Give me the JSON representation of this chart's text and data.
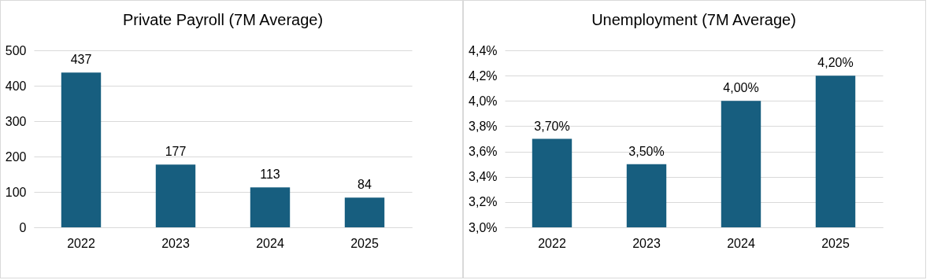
{
  "chart_data": [
    {
      "type": "bar",
      "title": "Private Payroll (7M Average)",
      "categories": [
        "2022",
        "2023",
        "2024",
        "2025"
      ],
      "values": [
        437,
        177,
        113,
        84
      ],
      "color": "#175e7f",
      "ylim": [
        0,
        500
      ],
      "yticks": [
        0,
        100,
        200,
        300,
        400,
        500
      ],
      "grid": "y",
      "data_labels": true
    },
    {
      "type": "bar",
      "title": "Unemployment (7M Average)",
      "categories": [
        "2022",
        "2023",
        "2024",
        "2025"
      ],
      "values": [
        3.7,
        3.5,
        4.0,
        4.2
      ],
      "value_labels": [
        "3,70%",
        "3,50%",
        "4,00%",
        "4,20%"
      ],
      "color": "#175e7f",
      "ylim": [
        3.0,
        4.4
      ],
      "yticks": [
        {
          "value": 3.0,
          "label": "3,0%"
        },
        {
          "value": 3.2,
          "label": "3,2%"
        },
        {
          "value": 3.4,
          "label": "3,4%"
        },
        {
          "value": 3.6,
          "label": "3,6%"
        },
        {
          "value": 3.8,
          "label": "3,8%"
        },
        {
          "value": 4.0,
          "label": "4,0%"
        },
        {
          "value": 4.2,
          "label": "4,2%"
        },
        {
          "value": 4.4,
          "label": "4,4%"
        }
      ],
      "grid": "y"
    }
  ]
}
